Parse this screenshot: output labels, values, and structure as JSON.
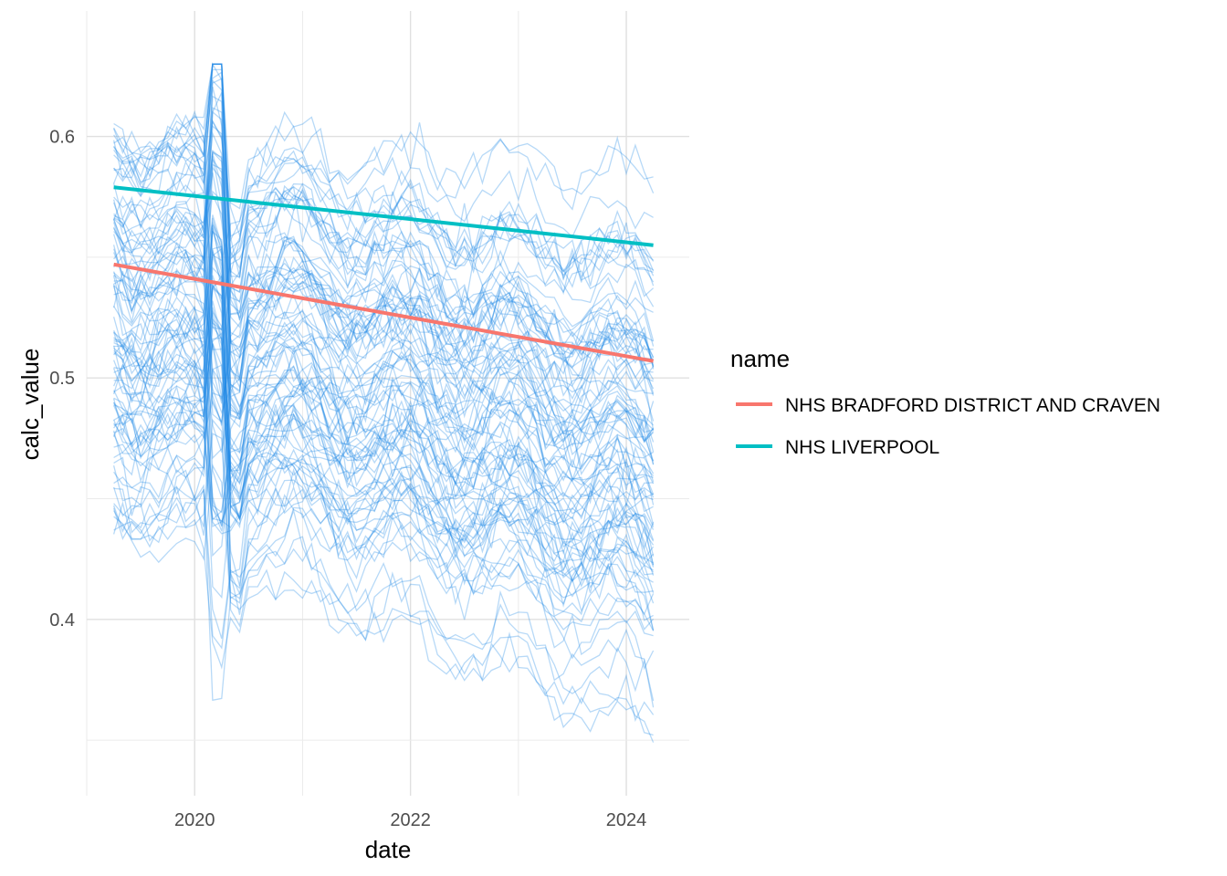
{
  "chart_data": {
    "type": "line",
    "xlabel": "date",
    "ylabel": "calc_value",
    "x_ticks": [
      "2020",
      "2022",
      "2024"
    ],
    "y_ticks": [
      "0.4",
      "0.5",
      "0.6"
    ],
    "xlim": [
      "2019-01-01",
      "2024-08-01"
    ],
    "ylim": [
      0.327,
      0.652
    ],
    "grid": true,
    "legend": {
      "title": "name",
      "placement": "right",
      "entries": [
        {
          "label": "NHS BRADFORD DISTRICT AND CRAVEN",
          "color": "#F8766D"
        },
        {
          "label": "NHS LIVERPOOL",
          "color": "#00BFC4"
        }
      ]
    },
    "background_series": {
      "description_color": "#1E88E5",
      "count": 100,
      "x_start": "2019-04-01",
      "x_end": "2024-04-01",
      "approx_range": [
        0.34,
        0.63
      ]
    },
    "series": [
      {
        "name": "NHS BRADFORD DISTRICT AND CRAVEN",
        "color": "#F8766D",
        "x": [
          "2019-04-01",
          "2024-04-01"
        ],
        "values": [
          0.547,
          0.507
        ]
      },
      {
        "name": "NHS LIVERPOOL",
        "color": "#00BFC4",
        "x": [
          "2019-04-01",
          "2024-04-01"
        ],
        "values": [
          0.579,
          0.555
        ]
      }
    ]
  }
}
